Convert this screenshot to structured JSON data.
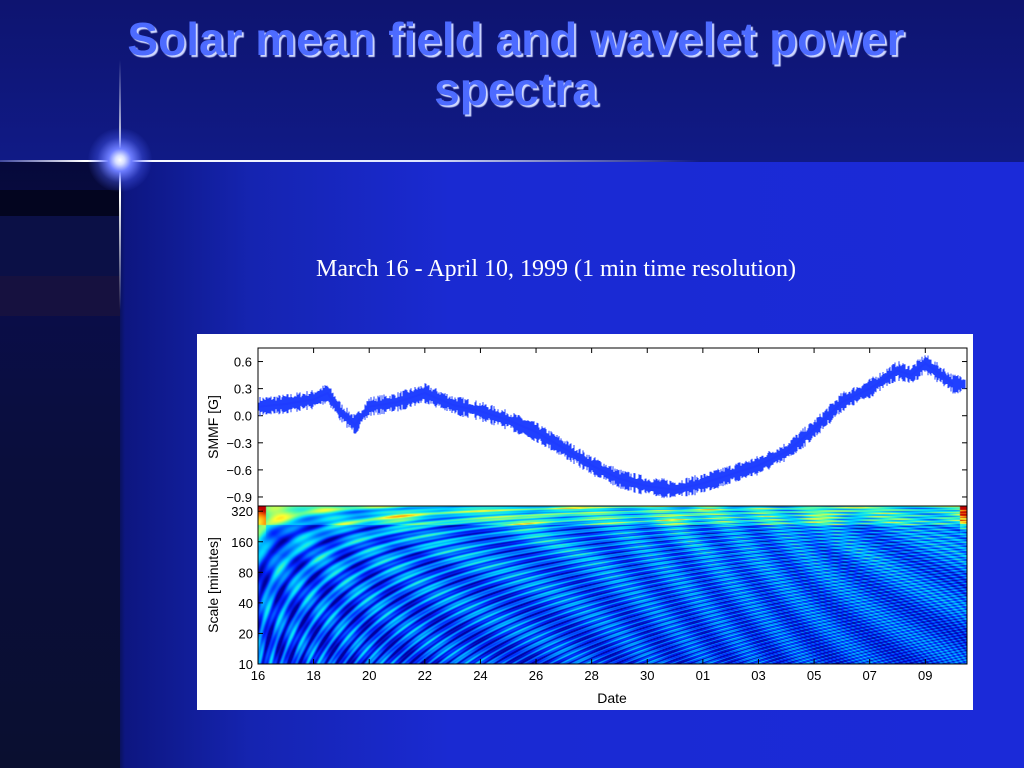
{
  "slide": {
    "title": "Solar mean field and wavelet power spectra",
    "subtitle": "March 16 - April 10, 1999 (1 min time resolution)"
  },
  "colors": {
    "title": "#4d6bff",
    "series": "#1f3cff",
    "background": "#1a22c8"
  },
  "chart_data": [
    {
      "type": "line",
      "ylabel": "SMMF [G]",
      "xlabel": "",
      "ylim": [
        -1.0,
        0.75
      ],
      "yticks": [
        "0.6",
        "0.3",
        "0.0",
        "−0.3",
        "−0.6",
        "−0.9"
      ],
      "ytick_values": [
        0.6,
        0.3,
        0.0,
        -0.3,
        -0.6,
        -0.9
      ],
      "x_range": [
        "1999-03-16",
        "1999-04-10"
      ],
      "series": [
        {
          "values": [
            {
              "x": "1999-03-16",
              "y": 0.1
            },
            {
              "x": "1999-03-17",
              "y": 0.13
            },
            {
              "x": "1999-03-18",
              "y": 0.18
            },
            {
              "x": "1999-03-18T12:00",
              "y": 0.25
            },
            {
              "x": "1999-03-19",
              "y": 0.03
            },
            {
              "x": "1999-03-19T12:00",
              "y": -0.1
            },
            {
              "x": "1999-03-20",
              "y": 0.1
            },
            {
              "x": "1999-03-21",
              "y": 0.15
            },
            {
              "x": "1999-03-22",
              "y": 0.25
            },
            {
              "x": "1999-03-23",
              "y": 0.12
            },
            {
              "x": "1999-03-24",
              "y": 0.05
            },
            {
              "x": "1999-03-25",
              "y": -0.05
            },
            {
              "x": "1999-03-26",
              "y": -0.18
            },
            {
              "x": "1999-03-27",
              "y": -0.36
            },
            {
              "x": "1999-03-28",
              "y": -0.55
            },
            {
              "x": "1999-03-29",
              "y": -0.7
            },
            {
              "x": "1999-03-30",
              "y": -0.78
            },
            {
              "x": "1999-03-31",
              "y": -0.82
            },
            {
              "x": "1999-04-01",
              "y": -0.75
            },
            {
              "x": "1999-04-02",
              "y": -0.65
            },
            {
              "x": "1999-04-03",
              "y": -0.55
            },
            {
              "x": "1999-04-04",
              "y": -0.4
            },
            {
              "x": "1999-04-05",
              "y": -0.15
            },
            {
              "x": "1999-04-06",
              "y": 0.15
            },
            {
              "x": "1999-04-07",
              "y": 0.3
            },
            {
              "x": "1999-04-08",
              "y": 0.5
            },
            {
              "x": "1999-04-08T12:00",
              "y": 0.45
            },
            {
              "x": "1999-04-09",
              "y": 0.58
            },
            {
              "x": "1999-04-10",
              "y": 0.35
            }
          ]
        }
      ]
    },
    {
      "type": "heatmap",
      "ylabel": "Scale [minutes]",
      "xlabel": "Date",
      "y_scale": "log2",
      "ylim": [
        10,
        360
      ],
      "yticks": [
        "320",
        "160",
        "80",
        "40",
        "20",
        "10"
      ],
      "ytick_values": [
        320,
        160,
        80,
        40,
        20,
        10
      ],
      "xticks": [
        "16",
        "18",
        "20",
        "22",
        "24",
        "26",
        "28",
        "30",
        "01",
        "03",
        "05",
        "07",
        "09"
      ],
      "xtick_dates": [
        "1999-03-16",
        "1999-03-18",
        "1999-03-20",
        "1999-03-22",
        "1999-03-24",
        "1999-03-26",
        "1999-03-28",
        "1999-03-30",
        "1999-04-01",
        "1999-04-03",
        "1999-04-05",
        "1999-04-07",
        "1999-04-09"
      ],
      "x_range": [
        "1999-03-16",
        "1999-04-10"
      ],
      "colormap": [
        "#00009a",
        "#0022ff",
        "#0088ff",
        "#00e0ff",
        "#60ff9a",
        "#ffff30",
        "#ff8000",
        "#c00000"
      ]
    }
  ]
}
